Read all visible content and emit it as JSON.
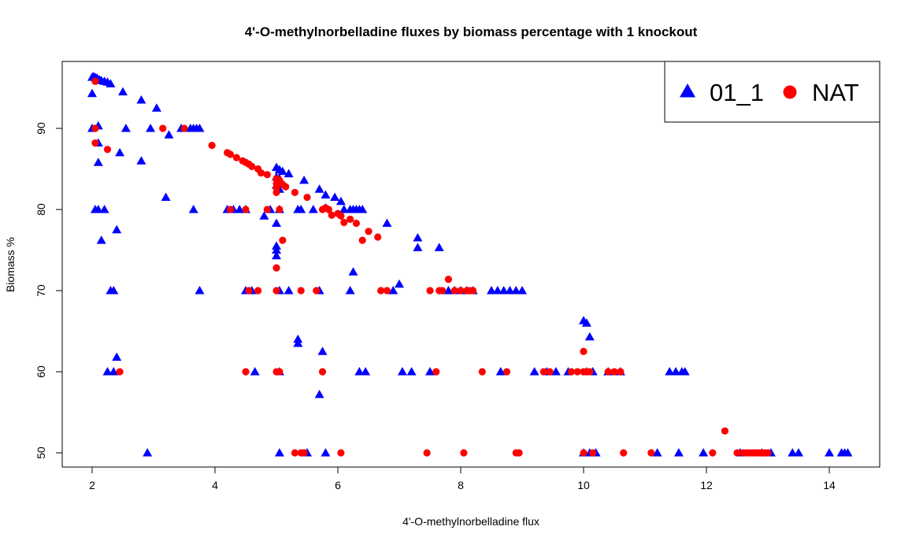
{
  "chart_data": {
    "type": "scatter",
    "title": "4'-O-methylnorbelladine fluxes by biomass percentage with 1 knockout",
    "xlabel": "4'-O-methylnorbelladine flux",
    "ylabel": "Biomass %",
    "xlim": [
      1.5,
      14.5
    ],
    "ylim": [
      48,
      97
    ],
    "xticks": [
      2,
      4,
      6,
      8,
      10,
      12,
      14
    ],
    "yticks": [
      50,
      60,
      70,
      80,
      90
    ],
    "grid": false,
    "legend_position": "top-right",
    "series": [
      {
        "name": "01_1",
        "marker": "triangle",
        "color": "#0000ff",
        "points": [
          [
            2.0,
            96.3
          ],
          [
            2.02,
            96.4
          ],
          [
            2.05,
            96.3
          ],
          [
            2.08,
            96.2
          ],
          [
            2.12,
            96.0
          ],
          [
            2.15,
            95.9
          ],
          [
            2.2,
            95.8
          ],
          [
            2.25,
            95.7
          ],
          [
            2.3,
            95.5
          ],
          [
            2.0,
            94.3
          ],
          [
            2.5,
            94.5
          ],
          [
            2.8,
            93.5
          ],
          [
            3.05,
            92.5
          ],
          [
            3.25,
            89.2
          ],
          [
            2.0,
            90.0
          ],
          [
            2.1,
            90.3
          ],
          [
            2.55,
            90.0
          ],
          [
            2.95,
            90.0
          ],
          [
            3.45,
            90.0
          ],
          [
            3.6,
            90.0
          ],
          [
            3.65,
            90.0
          ],
          [
            3.7,
            90.0
          ],
          [
            3.75,
            90.0
          ],
          [
            2.1,
            88.2
          ],
          [
            2.1,
            85.8
          ],
          [
            2.45,
            87.0
          ],
          [
            2.8,
            86.0
          ],
          [
            2.05,
            80.0
          ],
          [
            2.1,
            80.0
          ],
          [
            2.2,
            80.0
          ],
          [
            3.2,
            81.5
          ],
          [
            3.65,
            80.0
          ],
          [
            2.15,
            76.2
          ],
          [
            2.4,
            77.5
          ],
          [
            2.3,
            70.0
          ],
          [
            2.35,
            70.0
          ],
          [
            3.75,
            70.0
          ],
          [
            2.4,
            61.8
          ],
          [
            2.25,
            60.0
          ],
          [
            2.35,
            60.0
          ],
          [
            2.9,
            50.0
          ],
          [
            4.2,
            80.0
          ],
          [
            4.3,
            80.0
          ],
          [
            4.4,
            80.0
          ],
          [
            4.5,
            80.0
          ],
          [
            4.8,
            79.2
          ],
          [
            4.9,
            80.0
          ],
          [
            5.05,
            80.0
          ],
          [
            5.0,
            85.2
          ],
          [
            5.05,
            84.9
          ],
          [
            5.1,
            84.7
          ],
          [
            5.2,
            84.4
          ],
          [
            5.0,
            84.0
          ],
          [
            5.05,
            83.8
          ],
          [
            5.0,
            83.0
          ],
          [
            5.05,
            82.5
          ],
          [
            5.35,
            80.0
          ],
          [
            5.4,
            80.0
          ],
          [
            5.45,
            83.6
          ],
          [
            5.6,
            80.0
          ],
          [
            5.7,
            82.5
          ],
          [
            5.8,
            81.8
          ],
          [
            5.8,
            80.2
          ],
          [
            5.95,
            81.5
          ],
          [
            6.05,
            81.0
          ],
          [
            6.1,
            80.0
          ],
          [
            6.2,
            80.0
          ],
          [
            6.25,
            80.0
          ],
          [
            6.3,
            80.0
          ],
          [
            6.35,
            80.0
          ],
          [
            6.4,
            80.0
          ],
          [
            6.25,
            72.3
          ],
          [
            6.8,
            78.3
          ],
          [
            5.0,
            78.3
          ],
          [
            5.0,
            75.5
          ],
          [
            5.0,
            75.0
          ],
          [
            5.0,
            74.3
          ],
          [
            4.5,
            70.0
          ],
          [
            4.6,
            70.0
          ],
          [
            5.05,
            70.0
          ],
          [
            5.2,
            70.0
          ],
          [
            5.7,
            70.0
          ],
          [
            6.2,
            70.0
          ],
          [
            6.9,
            70.0
          ],
          [
            7.0,
            70.8
          ],
          [
            5.35,
            64.0
          ],
          [
            5.35,
            63.5
          ],
          [
            5.75,
            62.5
          ],
          [
            5.7,
            57.2
          ],
          [
            4.65,
            60.0
          ],
          [
            5.05,
            60.0
          ],
          [
            6.35,
            60.0
          ],
          [
            6.45,
            60.0
          ],
          [
            7.05,
            60.0
          ],
          [
            7.2,
            60.0
          ],
          [
            7.5,
            60.0
          ],
          [
            5.05,
            50.0
          ],
          [
            5.5,
            50.0
          ],
          [
            5.8,
            50.0
          ],
          [
            7.3,
            76.5
          ],
          [
            7.3,
            75.3
          ],
          [
            7.65,
            75.3
          ],
          [
            7.8,
            70.0
          ],
          [
            7.9,
            70.0
          ],
          [
            8.0,
            70.0
          ],
          [
            8.1,
            70.0
          ],
          [
            8.2,
            70.0
          ],
          [
            8.5,
            70.0
          ],
          [
            8.6,
            70.0
          ],
          [
            8.7,
            70.0
          ],
          [
            8.8,
            70.0
          ],
          [
            8.9,
            70.0
          ],
          [
            9.0,
            70.0
          ],
          [
            8.65,
            60.0
          ],
          [
            9.2,
            60.0
          ],
          [
            9.4,
            60.0
          ],
          [
            9.55,
            60.0
          ],
          [
            9.75,
            60.0
          ],
          [
            10.0,
            66.3
          ],
          [
            10.05,
            66.0
          ],
          [
            10.1,
            64.3
          ],
          [
            10.05,
            60.0
          ],
          [
            10.15,
            60.0
          ],
          [
            10.4,
            60.0
          ],
          [
            10.6,
            60.0
          ],
          [
            10.0,
            50.0
          ],
          [
            10.1,
            50.0
          ],
          [
            10.2,
            50.0
          ],
          [
            11.2,
            50.0
          ],
          [
            11.4,
            60.0
          ],
          [
            11.5,
            60.0
          ],
          [
            11.6,
            60.0
          ],
          [
            11.65,
            60.0
          ],
          [
            11.55,
            50.0
          ],
          [
            11.95,
            50.0
          ],
          [
            12.55,
            50.0
          ],
          [
            12.9,
            50.0
          ],
          [
            13.05,
            50.0
          ],
          [
            13.4,
            50.0
          ],
          [
            13.5,
            50.0
          ],
          [
            14.0,
            50.0
          ],
          [
            14.2,
            50.0
          ],
          [
            14.25,
            50.0
          ],
          [
            14.3,
            50.0
          ]
        ]
      },
      {
        "name": "NAT",
        "marker": "circle",
        "color": "#ff0000",
        "points": [
          [
            2.05,
            95.8
          ],
          [
            2.05,
            90.0
          ],
          [
            2.05,
            88.2
          ],
          [
            2.25,
            87.4
          ],
          [
            3.15,
            90.0
          ],
          [
            3.5,
            90.0
          ],
          [
            3.95,
            87.9
          ],
          [
            4.2,
            87.0
          ],
          [
            4.25,
            86.8
          ],
          [
            4.35,
            86.4
          ],
          [
            4.45,
            86.0
          ],
          [
            4.5,
            85.8
          ],
          [
            4.55,
            85.6
          ],
          [
            4.6,
            85.3
          ],
          [
            4.7,
            85.0
          ],
          [
            4.75,
            84.5
          ],
          [
            4.85,
            84.3
          ],
          [
            5.0,
            83.8
          ],
          [
            5.0,
            83.2
          ],
          [
            5.0,
            82.7
          ],
          [
            5.0,
            82.1
          ],
          [
            5.05,
            83.6
          ],
          [
            5.1,
            83.1
          ],
          [
            5.15,
            82.8
          ],
          [
            5.3,
            82.1
          ],
          [
            5.5,
            81.5
          ],
          [
            4.25,
            80.0
          ],
          [
            4.5,
            80.0
          ],
          [
            4.85,
            80.0
          ],
          [
            5.05,
            80.0
          ],
          [
            5.75,
            80.0
          ],
          [
            5.8,
            80.2
          ],
          [
            5.85,
            80.0
          ],
          [
            5.9,
            79.3
          ],
          [
            6.0,
            79.5
          ],
          [
            6.05,
            79.2
          ],
          [
            6.1,
            78.4
          ],
          [
            6.2,
            78.8
          ],
          [
            6.3,
            78.3
          ],
          [
            6.4,
            76.2
          ],
          [
            6.5,
            77.3
          ],
          [
            6.65,
            76.6
          ],
          [
            5.1,
            76.2
          ],
          [
            5.0,
            72.8
          ],
          [
            4.55,
            70.0
          ],
          [
            4.7,
            70.0
          ],
          [
            5.0,
            70.0
          ],
          [
            5.4,
            70.0
          ],
          [
            5.65,
            70.0
          ],
          [
            6.7,
            70.0
          ],
          [
            6.8,
            70.0
          ],
          [
            7.5,
            70.0
          ],
          [
            7.65,
            70.0
          ],
          [
            7.7,
            70.0
          ],
          [
            7.8,
            71.4
          ],
          [
            7.9,
            70.0
          ],
          [
            8.0,
            70.0
          ],
          [
            8.1,
            70.0
          ],
          [
            8.15,
            70.0
          ],
          [
            8.2,
            70.0
          ],
          [
            2.45,
            60.0
          ],
          [
            4.5,
            60.0
          ],
          [
            5.0,
            60.0
          ],
          [
            5.05,
            60.0
          ],
          [
            5.75,
            60.0
          ],
          [
            7.6,
            60.0
          ],
          [
            8.35,
            60.0
          ],
          [
            8.75,
            60.0
          ],
          [
            9.35,
            60.0
          ],
          [
            9.45,
            60.0
          ],
          [
            9.8,
            60.0
          ],
          [
            9.9,
            60.0
          ],
          [
            10.0,
            60.0
          ],
          [
            10.05,
            60.0
          ],
          [
            10.1,
            60.0
          ],
          [
            10.0,
            62.5
          ],
          [
            10.4,
            60.0
          ],
          [
            10.5,
            60.0
          ],
          [
            10.6,
            60.0
          ],
          [
            10.6,
            60.0
          ],
          [
            5.3,
            50.0
          ],
          [
            5.4,
            50.0
          ],
          [
            5.45,
            50.0
          ],
          [
            6.05,
            50.0
          ],
          [
            7.45,
            50.0
          ],
          [
            8.05,
            50.0
          ],
          [
            8.9,
            50.0
          ],
          [
            8.95,
            50.0
          ],
          [
            10.0,
            50.0
          ],
          [
            10.15,
            50.0
          ],
          [
            10.65,
            50.0
          ],
          [
            11.1,
            50.0
          ],
          [
            12.1,
            50.0
          ],
          [
            12.3,
            52.7
          ],
          [
            12.5,
            50.0
          ],
          [
            12.6,
            50.0
          ],
          [
            12.65,
            50.0
          ],
          [
            12.7,
            50.0
          ],
          [
            12.75,
            50.0
          ],
          [
            12.8,
            50.0
          ],
          [
            12.85,
            50.0
          ],
          [
            12.9,
            50.0
          ],
          [
            12.95,
            50.0
          ],
          [
            13.0,
            50.0
          ]
        ]
      }
    ]
  }
}
